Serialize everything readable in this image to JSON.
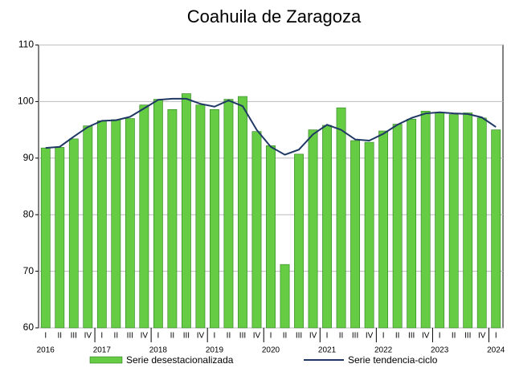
{
  "chart_data": {
    "type": "bar-line",
    "title": "Coahuila de Zaragoza",
    "categories": [
      "I",
      "II",
      "III",
      "IV",
      "I",
      "II",
      "III",
      "IV",
      "I",
      "II",
      "III",
      "IV",
      "I",
      "II",
      "III",
      "IV",
      "I",
      "II",
      "III",
      "IV",
      "I",
      "II",
      "III",
      "IV",
      "I",
      "II",
      "III",
      "IV",
      "I",
      "II",
      "III",
      "IV",
      "I"
    ],
    "years": [
      "2016",
      "2017",
      "2018",
      "2019",
      "2020",
      "2021",
      "2022",
      "2023",
      "2024"
    ],
    "series": [
      {
        "name": "Serie desestacionalizada",
        "color": "#66cc44",
        "values": [
          91.8,
          91.9,
          93.4,
          95.7,
          96.6,
          96.8,
          97.0,
          99.4,
          100.4,
          98.6,
          101.4,
          99.4,
          98.6,
          100.4,
          100.9,
          94.7,
          92.2,
          71.2,
          90.7,
          95.0,
          95.8,
          98.9,
          93.1,
          92.8,
          94.8,
          96.0,
          96.9,
          98.3,
          98.0,
          97.7,
          98.0,
          97.1,
          95.0
        ]
      },
      {
        "name": "Serie tendencia-ciclo",
        "color": "#1f3864",
        "values": [
          91.8,
          92.0,
          93.8,
          95.5,
          96.6,
          96.7,
          97.3,
          98.8,
          100.3,
          100.5,
          100.5,
          99.6,
          99.1,
          100.2,
          99.2,
          95.0,
          92.0,
          90.6,
          91.5,
          94.2,
          95.9,
          95.0,
          93.3,
          93.1,
          94.3,
          95.9,
          97.1,
          97.9,
          98.1,
          97.9,
          97.8,
          97.2,
          95.5
        ]
      }
    ],
    "ylim": [
      60,
      110
    ],
    "yticks": [
      60,
      70,
      80,
      90,
      100,
      110
    ],
    "grid": true
  }
}
